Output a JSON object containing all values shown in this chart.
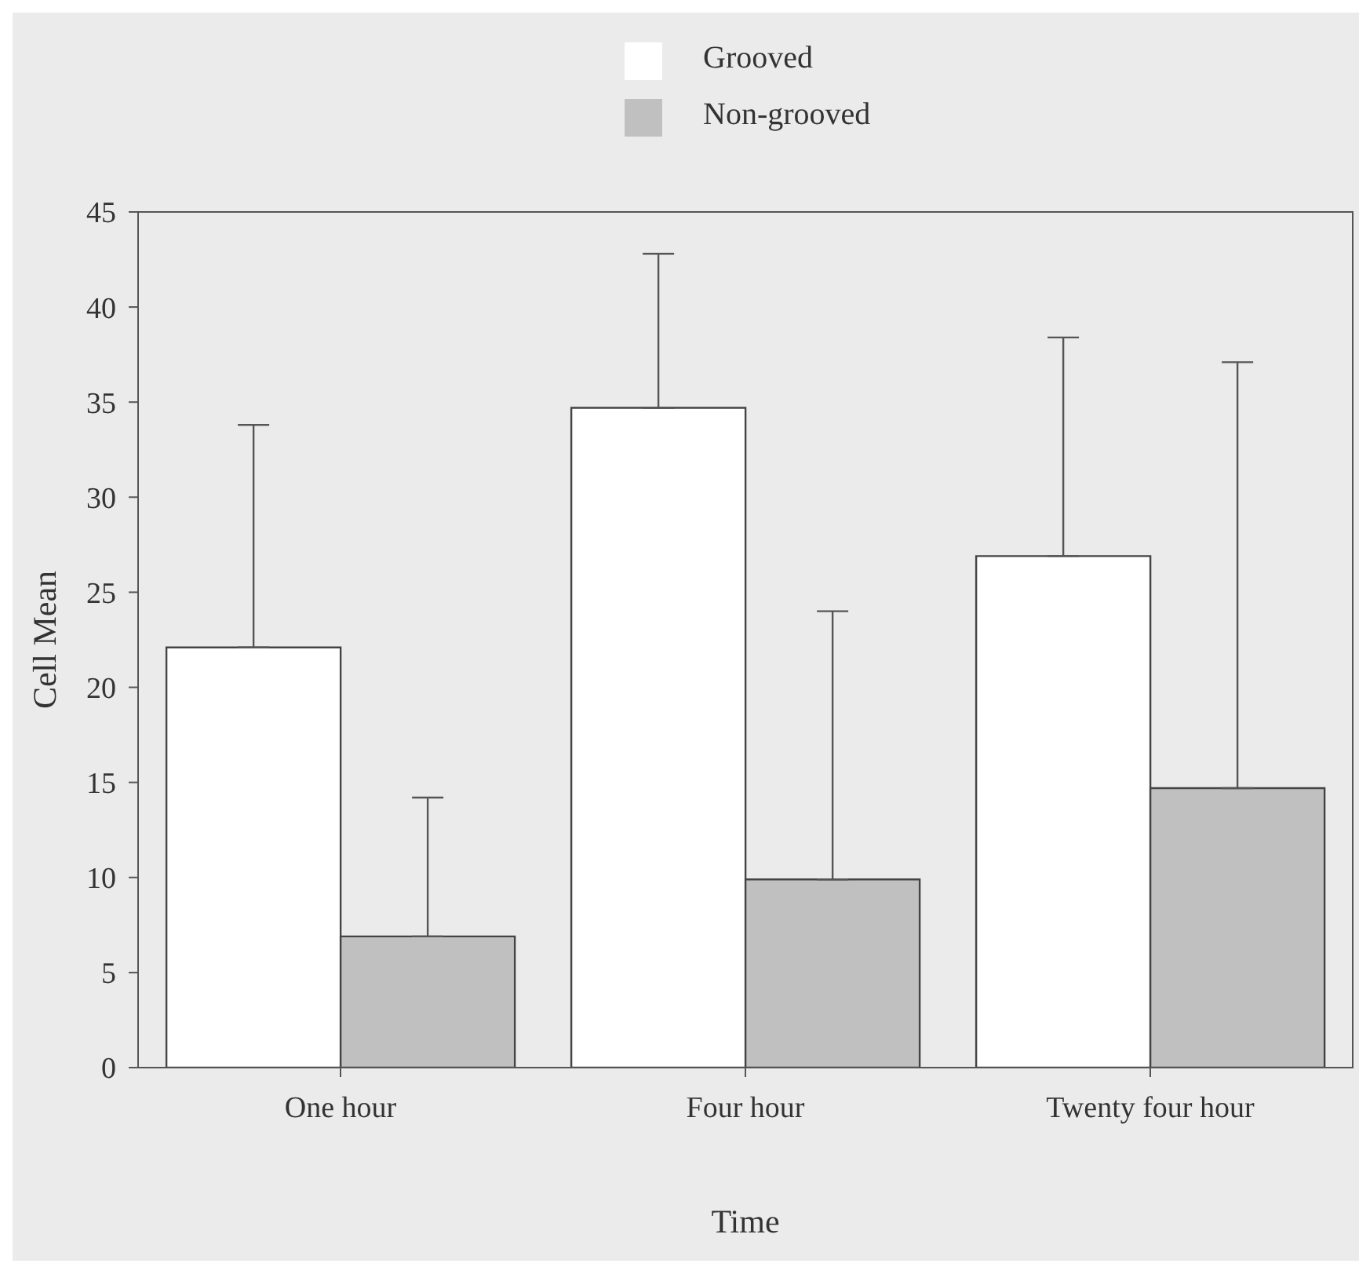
{
  "chart_data": {
    "type": "bar",
    "xlabel": "Time",
    "ylabel": "Cell Mean",
    "categories": [
      "One hour",
      "Four hour",
      "Twenty four hour"
    ],
    "series": [
      {
        "name": "Grooved",
        "color": "#ffffff",
        "values": [
          22.1,
          34.7,
          26.9
        ],
        "errors": [
          [
            22.1,
            33.8
          ],
          [
            34.7,
            42.8
          ],
          [
            26.9,
            38.4
          ]
        ]
      },
      {
        "name": "Non-grooved",
        "color": "#c0c0c0",
        "values": [
          6.9,
          9.9,
          14.7
        ],
        "errors": [
          [
            6.9,
            14.2
          ],
          [
            9.9,
            24.0
          ],
          [
            14.7,
            37.1
          ]
        ]
      }
    ],
    "ylim": [
      0,
      45
    ],
    "yticks": [
      0,
      5,
      10,
      15,
      20,
      25,
      30,
      35,
      40,
      45
    ],
    "grid": false,
    "legend": "top"
  }
}
